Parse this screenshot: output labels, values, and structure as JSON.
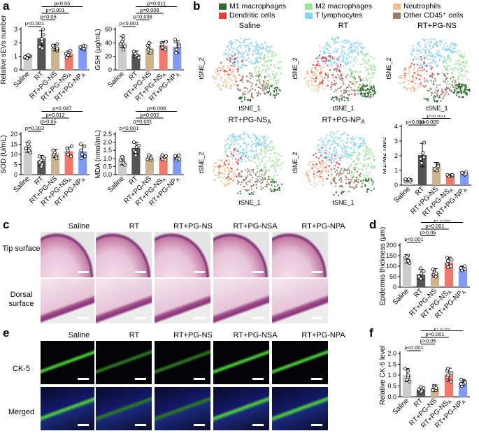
{
  "panels": {
    "a": "a",
    "b": "b",
    "c": "c",
    "d": "d",
    "e": "e",
    "f": "f"
  },
  "groups": [
    "Saline",
    "RT",
    "RT+PG-NS",
    "RT+PG-NSA",
    "RT+PG-NPA"
  ],
  "colors": {
    "Saline": "#cccccc",
    "RT": "#555555",
    "RT+PG-NS": "#cdb48e",
    "RT+PG-NSA": "#ee7a6b",
    "RT+PG-NPA": "#7f9af0",
    "M1": "#2e6f2e",
    "M2": "#9be59b",
    "Neutro": "#f0c090",
    "Dendritic": "#ee3b3b",
    "Tlym": "#8fd3f5",
    "Other": "#9c7b6e"
  },
  "tsne": {
    "legend": [
      "M1 macrophages",
      "M2 macrophages",
      "Neutrophils",
      "Dendritic cells",
      "T lymphocytes",
      "Other CD45⁺ cells"
    ],
    "titles": [
      "Saline",
      "RT",
      "RT+PG-NS",
      "RT+PG-NSA",
      "RT+PG-NPA"
    ],
    "xlabel": "tSNE_1",
    "ylabel": "tSNE_2"
  },
  "histology": {
    "columns": [
      "Saline",
      "RT",
      "RT+PG-NS",
      "RT+PG-NSA",
      "RT+PG-NPA"
    ],
    "rows": [
      "Tip surface",
      "Dorsal surface"
    ]
  },
  "fluorescence": {
    "columns": [
      "Saline",
      "RT",
      "RT+PG-NS",
      "RT+PG-NSA",
      "RT+PG-NPA"
    ],
    "rows": [
      "CK-5",
      "Merged"
    ]
  },
  "chart_data": [
    {
      "id": "sevs",
      "type": "bar",
      "ylabel": "Relative sEVs number",
      "ylim": [
        0,
        3
      ],
      "yticks": [
        0,
        1,
        2,
        3
      ],
      "categories": [
        "Saline",
        "RT",
        "RT+PG-NS",
        "RT+PG-NSA",
        "RT+PG-NPA"
      ],
      "values": [
        1.0,
        2.35,
        1.65,
        1.2,
        1.65
      ],
      "errors": [
        0.1,
        0.55,
        0.25,
        0.2,
        0.15
      ],
      "points": [
        [
          0.9,
          0.95,
          1.0,
          1.05,
          1.1,
          0.85
        ],
        [
          1.7,
          2.1,
          2.6,
          3.0,
          2.3,
          1.6
        ],
        [
          1.4,
          1.5,
          1.7,
          1.9,
          1.6,
          1.8
        ],
        [
          1.0,
          1.2,
          1.3,
          1.1,
          1.4,
          0.9
        ],
        [
          1.5,
          1.6,
          1.7,
          1.8,
          1.55,
          1.75
        ]
      ],
      "annotations": [
        {
          "text": "p<0.001",
          "from": 0,
          "to": 1,
          "level": 0
        },
        {
          "text": "p<0.05",
          "from": 1,
          "to": 2,
          "level": 1
        },
        {
          "text": "p<0.001",
          "from": 1,
          "to": 3,
          "level": 2
        },
        {
          "text": "p>0.05",
          "from": 1,
          "to": 4,
          "level": 3
        }
      ]
    },
    {
      "id": "gsh",
      "type": "bar",
      "ylabel": "GSH (μg/mL)",
      "ylim": [
        0,
        60
      ],
      "yticks": [
        0,
        20,
        40,
        60
      ],
      "categories": [
        "Saline",
        "RT",
        "RT+PG-NS",
        "RT+PG-NSA",
        "RT+PG-NPA"
      ],
      "values": [
        41,
        23,
        32,
        36,
        34
      ],
      "errors": [
        8,
        5,
        8,
        6,
        9
      ],
      "points": [
        [
          35,
          45,
          50,
          38,
          30,
          42
        ],
        [
          20,
          25,
          18,
          27,
          22,
          24
        ],
        [
          25,
          30,
          35,
          40,
          28,
          36
        ],
        [
          30,
          35,
          40,
          38,
          33,
          42
        ],
        [
          25,
          30,
          38,
          42,
          35,
          45
        ]
      ],
      "annotations": [
        {
          "text": "p<0.001",
          "from": 0,
          "to": 1,
          "level": 0
        },
        {
          "text": "p=0.038",
          "from": 1,
          "to": 2,
          "level": 1
        },
        {
          "text": "p=0.008",
          "from": 1,
          "to": 3,
          "level": 2
        },
        {
          "text": "p=0.011",
          "from": 1,
          "to": 4,
          "level": 3
        }
      ]
    },
    {
      "id": "sod",
      "type": "bar",
      "ylabel": "SOD (U/mL)",
      "ylim": [
        0,
        20
      ],
      "yticks": [
        0,
        5,
        10,
        15,
        20
      ],
      "categories": [
        "Saline",
        "RT",
        "RT+PG-NS",
        "RT+PG-NSA",
        "RT+PG-NPA"
      ],
      "values": [
        13.5,
        7,
        10.5,
        11.5,
        11.5
      ],
      "errors": [
        2.5,
        2.5,
        2,
        2,
        3
      ],
      "points": [
        [
          11,
          14,
          16,
          13,
          12,
          15
        ],
        [
          4,
          6,
          8,
          9,
          5,
          7
        ],
        [
          9,
          10,
          12,
          11,
          8,
          12
        ],
        [
          9,
          11,
          13,
          12,
          10,
          14
        ],
        [
          8,
          10,
          14,
          12,
          9,
          15
        ]
      ],
      "annotations": [
        {
          "text": "p=0.002",
          "from": 0,
          "to": 1,
          "level": 0
        },
        {
          "text": "p>0.05",
          "from": 1,
          "to": 2,
          "level": 1
        },
        {
          "text": "p=0.012",
          "from": 1,
          "to": 3,
          "level": 2
        },
        {
          "text": "p=0.047",
          "from": 1,
          "to": 4,
          "level": 3
        }
      ]
    },
    {
      "id": "mda",
      "type": "bar",
      "ylabel": "MDA (nmol/mL)",
      "ylim": [
        0,
        2.5
      ],
      "yticks": [
        0.0,
        0.5,
        1.0,
        1.5,
        2.0,
        2.5
      ],
      "categories": [
        "Saline",
        "RT",
        "RT+PG-NS",
        "RT+PG-NSA",
        "RT+PG-NPA"
      ],
      "values": [
        0.85,
        1.65,
        1.05,
        1.05,
        1.05
      ],
      "errors": [
        0.25,
        0.35,
        0.15,
        0.15,
        0.15
      ],
      "points": [
        [
          0.6,
          0.8,
          1.0,
          0.9,
          0.7,
          1.1
        ],
        [
          1.2,
          1.5,
          1.8,
          2.0,
          1.7,
          1.4
        ],
        [
          0.9,
          1.0,
          1.1,
          1.2,
          1.0,
          0.95
        ],
        [
          0.9,
          1.0,
          1.1,
          1.2,
          0.95,
          1.15
        ],
        [
          0.9,
          1.0,
          1.2,
          1.1,
          0.95,
          1.15
        ]
      ],
      "annotations": [
        {
          "text": "p<0.001",
          "from": 0,
          "to": 1,
          "level": 0
        },
        {
          "text": "p=0.001",
          "from": 1,
          "to": 2,
          "level": 1
        },
        {
          "text": "p=0.002",
          "from": 1,
          "to": 3,
          "level": 2
        },
        {
          "text": "p=0.006",
          "from": 1,
          "to": 4,
          "level": 3
        }
      ]
    },
    {
      "id": "m1m2",
      "type": "bar",
      "ylabel": "M1/M2 ratio",
      "ylim": [
        0,
        4
      ],
      "yticks": [
        0,
        1,
        2,
        3,
        4
      ],
      "categories": [
        "Saline",
        "RT",
        "RT+PG-NS",
        "RT+PG-NSA",
        "RT+PG-NPA"
      ],
      "values": [
        0.35,
        2.05,
        1.25,
        0.65,
        0.8
      ],
      "errors": [
        0.1,
        0.8,
        0.3,
        0.1,
        0.1
      ],
      "points": [
        [
          0.3,
          0.4,
          0.35,
          0.3,
          0.4
        ],
        [
          1.5,
          1.8,
          2.2,
          2.9,
          1.9
        ],
        [
          1.0,
          1.2,
          1.4,
          1.3,
          1.1
        ],
        [
          0.6,
          0.7,
          0.65,
          0.6,
          0.7
        ],
        [
          0.7,
          0.8,
          0.9,
          0.85,
          0.75
        ]
      ],
      "annotations": [
        {
          "text": "p<0.001",
          "from": 0,
          "to": 1,
          "level": 0
        },
        {
          "text": "p=0.009",
          "from": 1,
          "to": 2,
          "level": 0,
          "xoff": true
        },
        {
          "text": "p<0.001",
          "from": 1,
          "to": 3,
          "level": 1
        },
        {
          "text": "p<0.001",
          "from": 1,
          "to": 4,
          "level": 2
        }
      ]
    },
    {
      "id": "epi",
      "type": "bar",
      "ylabel": "Epidermis thickness (μm)",
      "ylim": [
        0,
        200
      ],
      "yticks": [
        0,
        50,
        100,
        150,
        200
      ],
      "categories": [
        "Saline",
        "RT",
        "RT+PG-NS",
        "RT+PG-NSA",
        "RT+PG-NPA"
      ],
      "values": [
        135,
        60,
        68,
        118,
        90
      ],
      "errors": [
        20,
        25,
        20,
        25,
        10
      ],
      "points": [
        [
          115,
          130,
          150,
          140,
          125,
          145
        ],
        [
          40,
          55,
          75,
          50,
          65,
          90
        ],
        [
          50,
          60,
          80,
          70,
          65,
          85
        ],
        [
          100,
          110,
          140,
          125,
          95,
          130
        ],
        [
          80,
          90,
          100,
          95,
          85,
          92
        ]
      ],
      "annotations": [
        {
          "text": "p<0.001",
          "from": 0,
          "to": 1,
          "level": 0
        },
        {
          "text": "p>0.05",
          "from": 1,
          "to": 2,
          "level": 1
        },
        {
          "text": "p<0.001",
          "from": 1,
          "to": 3,
          "level": 2
        },
        {
          "text": "p>0.05",
          "from": 1,
          "to": 4,
          "level": 3
        }
      ]
    },
    {
      "id": "ck5",
      "type": "bar",
      "ylabel": "Relative CK-5 level",
      "ylim": [
        0,
        2
      ],
      "yticks": [
        0.0,
        0.5,
        1.0,
        1.5,
        2.0
      ],
      "categories": [
        "Saline",
        "RT",
        "RT+PG-NS",
        "RT+PG-NSA",
        "RT+PG-NPA"
      ],
      "values": [
        1.0,
        0.32,
        0.4,
        1.02,
        0.65
      ],
      "errors": [
        0.3,
        0.1,
        0.15,
        0.3,
        0.15
      ],
      "points": [
        [
          0.7,
          0.9,
          1.2,
          1.3,
          1.0,
          0.8
        ],
        [
          0.2,
          0.3,
          0.4,
          0.35,
          0.25,
          0.45
        ],
        [
          0.3,
          0.35,
          0.5,
          0.45,
          0.4,
          0.3
        ],
        [
          0.7,
          0.9,
          1.2,
          1.3,
          1.0,
          1.1
        ],
        [
          0.5,
          0.6,
          0.7,
          0.8,
          0.65,
          0.6
        ]
      ],
      "annotations": [
        {
          "text": "p<0.001",
          "from": 0,
          "to": 1,
          "level": 0
        },
        {
          "text": "p>0.05",
          "from": 1,
          "to": 2,
          "level": 1
        },
        {
          "text": "p<0.001",
          "from": 1,
          "to": 3,
          "level": 2
        },
        {
          "text": "p>0.05",
          "from": 1,
          "to": 4,
          "level": 3
        }
      ]
    }
  ]
}
